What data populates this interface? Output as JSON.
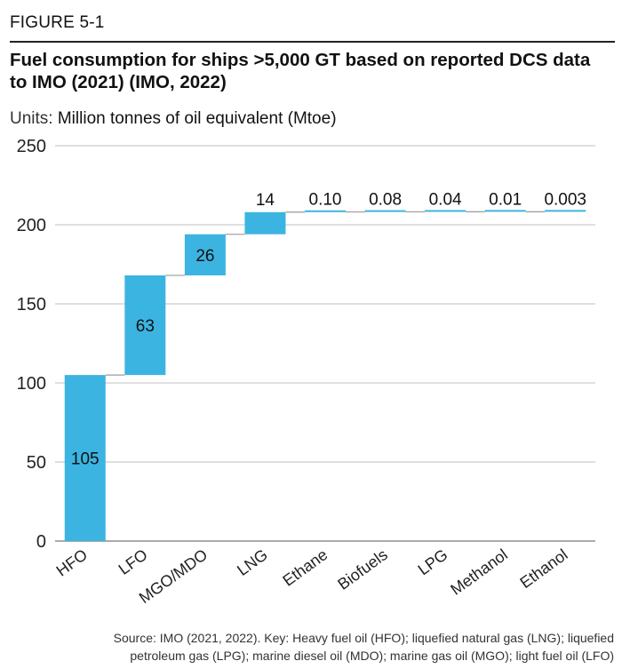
{
  "figure_label": "FIGURE 5-1",
  "title": "Fuel consumption for ships >5,000 GT based on reported DCS data to IMO (2021) (IMO, 2022)",
  "units": {
    "prefix": "Units:",
    "text": "Million tonnes of oil equivalent (Mtoe)"
  },
  "source": {
    "line1": "Source: IMO (2021, 2022). Key: Heavy fuel oil (HFO); liquefied natural gas (LNG); liquefied",
    "line2": "petroleum gas (LPG); marine diesel oil (MDO); marine gas oil (MGO); light fuel oil (LFO)"
  },
  "colors": {
    "bar": "#3cb4e1",
    "grid": "#bfbfbf",
    "connector": "#9a9a9a"
  },
  "chart_data": {
    "type": "waterfall",
    "title": "Fuel consumption for ships >5,000 GT based on reported DCS data to IMO (2021) (IMO, 2022)",
    "ylabel": "Million tonnes of oil equivalent (Mtoe)",
    "ylim": [
      0,
      250
    ],
    "yticks": [
      0,
      50,
      100,
      150,
      200,
      250
    ],
    "grid": true,
    "categories": [
      "HFO",
      "LFO",
      "MGO/MDO",
      "LNG",
      "Ethane",
      "Biofuels",
      "LPG",
      "Methanol",
      "Ethanol"
    ],
    "values": [
      105,
      63,
      26,
      14,
      0.1,
      0.08,
      0.04,
      0.01,
      0.003
    ],
    "labels": [
      "105",
      "63",
      "26",
      "14",
      "0.10",
      "0.08",
      "0.04",
      "0.01",
      "0.003"
    ],
    "label_position": [
      "inside",
      "inside",
      "inside",
      "above",
      "above",
      "above",
      "above",
      "above",
      "above"
    ]
  }
}
